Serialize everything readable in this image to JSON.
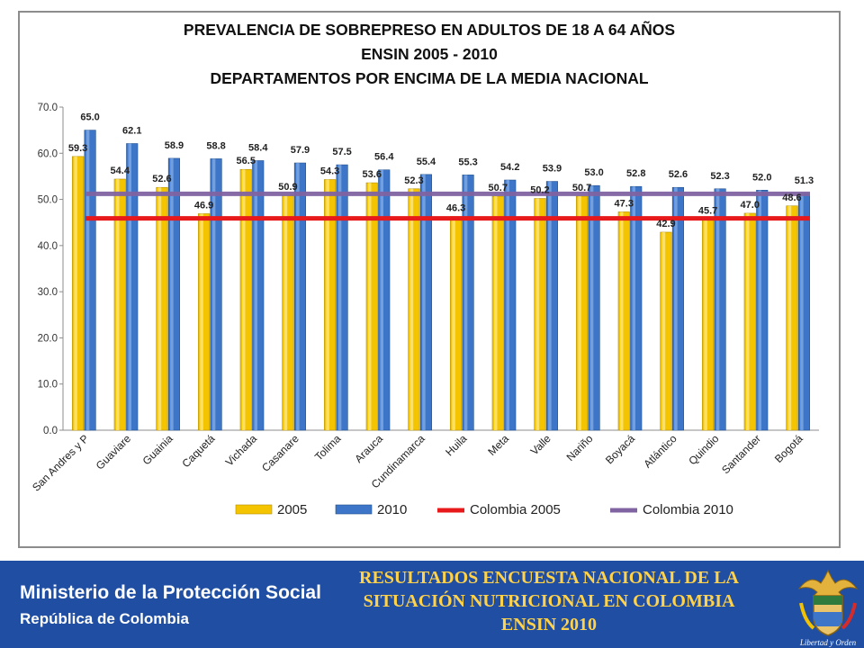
{
  "footer": {
    "ministry": "Ministerio de la Protección Social",
    "republic": "República de Colombia",
    "results_line1": "RESULTADOS ENCUESTA NACIONAL DE LA",
    "results_line2": "SITUACIÓN NUTRICIONAL EN COLOMBIA",
    "results_line3": "ENSIN 2010",
    "seal_motto": "Libertad y Orden"
  },
  "colors": {
    "bar_2005": "#f5c400",
    "bar_2010": "#3d76c9",
    "line_colombia_2005": "#e8191a",
    "line_colombia_2010": "#8064a2",
    "footer_bg": "#1f4ea3",
    "footer_title": "#ffd24a"
  },
  "chart_data": {
    "type": "bar",
    "title": [
      "PREVALENCIA DE SOBREPRESO EN ADULTOS DE 18 A 64 AÑOS",
      "ENSIN 2005 - 2010",
      "DEPARTAMENTOS POR ENCIMA DE LA MEDIA NACIONAL"
    ],
    "categories": [
      "San Andres y P",
      "Guaviare",
      "Guainia",
      "Caquetá",
      "Vichada",
      "Casanare",
      "Tolima",
      "Arauca",
      "Cundinamarca",
      "Huila",
      "Meta",
      "Valle",
      "Nariño",
      "Boyacá",
      "Atlántico",
      "Quindio",
      "Santander",
      "Bogotá"
    ],
    "series": [
      {
        "name": "2005",
        "values": [
          59.3,
          54.4,
          52.6,
          46.9,
          56.5,
          50.9,
          54.3,
          53.6,
          52.3,
          46.3,
          50.7,
          50.2,
          50.7,
          47.3,
          42.9,
          45.7,
          47.0,
          48.6
        ],
        "labels": [
          "59.3",
          "54.4",
          "52.6",
          "46.9",
          "56.5",
          "50.9",
          "54.3",
          "53.6",
          "52.3",
          "46.3",
          "50.7",
          "50.2",
          "50.7",
          "47.3",
          "42.9",
          "45.7",
          "47.0",
          "48.6"
        ]
      },
      {
        "name": "2010",
        "values": [
          65.0,
          62.1,
          58.9,
          58.8,
          58.4,
          57.9,
          57.5,
          56.4,
          55.4,
          55.3,
          54.2,
          53.9,
          53.0,
          52.8,
          52.6,
          52.3,
          52.0,
          51.3
        ],
        "labels": [
          "65.0",
          "62.1",
          "58.9",
          "58.8",
          "58.4",
          "57.9",
          "57.5",
          "56.4",
          "55.4",
          "55.3",
          "54.2",
          "53.9",
          "53.0",
          "52.8",
          "52.6",
          "52.3",
          "52.0",
          "51.3"
        ]
      }
    ],
    "reference_lines": [
      {
        "name": "Colombia 2005",
        "value": 45.9
      },
      {
        "name": "Colombia 2010",
        "value": 51.2
      }
    ],
    "ylim": [
      0,
      70
    ],
    "yticks": [
      "0.0",
      "10.0",
      "20.0",
      "30.0",
      "40.0",
      "50.0",
      "60.0",
      "70.0"
    ],
    "ytick_values": [
      0,
      10,
      20,
      30,
      40,
      50,
      60,
      70
    ],
    "legend": {
      "position": "bottom",
      "entries": [
        "2005",
        "2010",
        "Colombia 2005",
        "Colombia 2010"
      ]
    },
    "grid": false
  }
}
